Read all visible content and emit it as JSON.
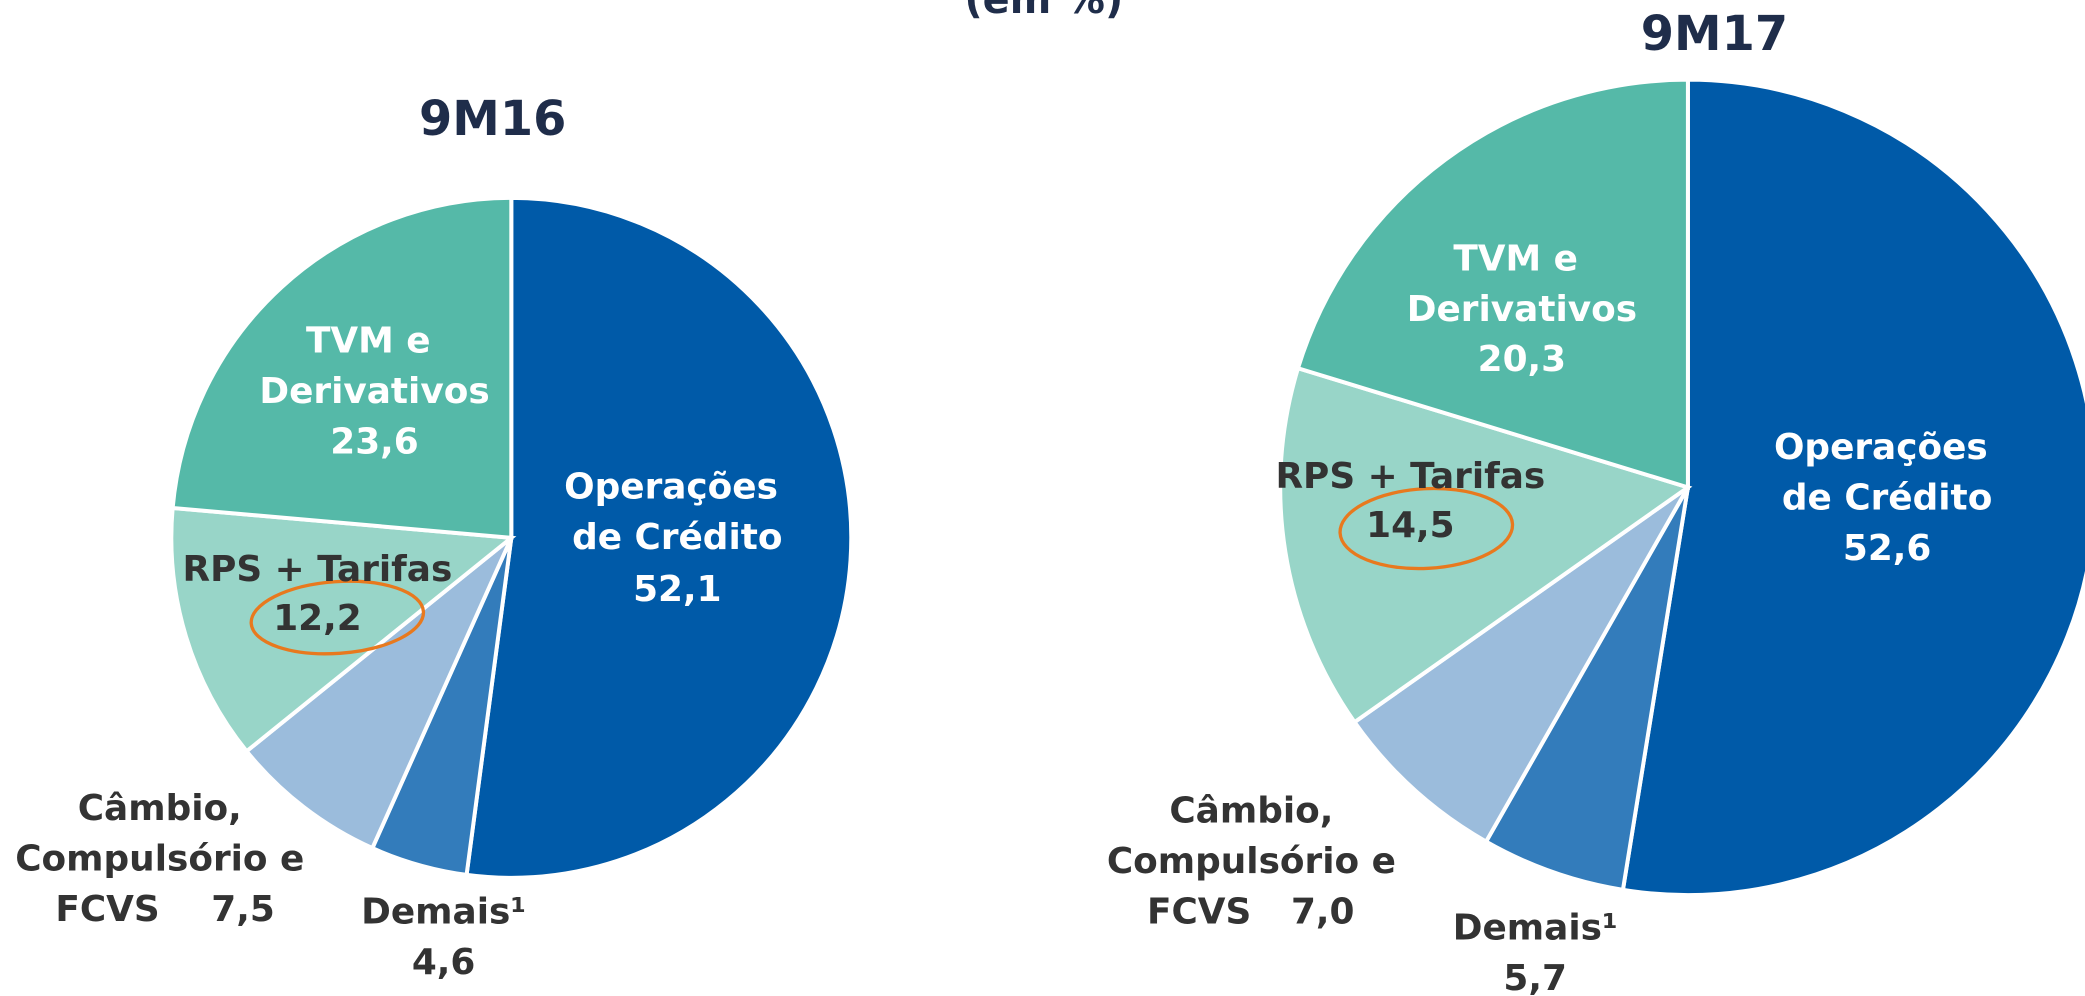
{
  "chart_data": [
    {
      "type": "pie",
      "title": "9M16",
      "subtitle": "(em %)",
      "categories": [
        "Operações de Crédito",
        "Demais¹",
        "Câmbio, Compulsório e FCVS",
        "RPS + Tarifas",
        "TVM e Derivativos"
      ],
      "values": [
        52.1,
        4.6,
        7.5,
        12.2,
        23.6
      ],
      "value_labels": [
        "52,1",
        "4,6",
        "7,5",
        "12,2",
        "23,6"
      ],
      "colors": [
        "#005aa8",
        "#337cbb",
        "#9bbcdc",
        "#98d5c8",
        "#55b9a8"
      ]
    },
    {
      "type": "pie",
      "title": "9M17",
      "categories": [
        "Operações de Crédito",
        "Demais¹",
        "Câmbio, Compulsório e FCVS",
        "RPS + Tarifas",
        "TVM e Derivativos"
      ],
      "values": [
        52.6,
        5.7,
        7.0,
        14.5,
        20.3
      ],
      "value_labels": [
        "52,6",
        "5,7",
        "7,0",
        "14,5",
        "20,3"
      ],
      "colors": [
        "#005aa8",
        "#337cbb",
        "#9bbcdc",
        "#98d5c8",
        "#55b9a8"
      ]
    }
  ]
}
